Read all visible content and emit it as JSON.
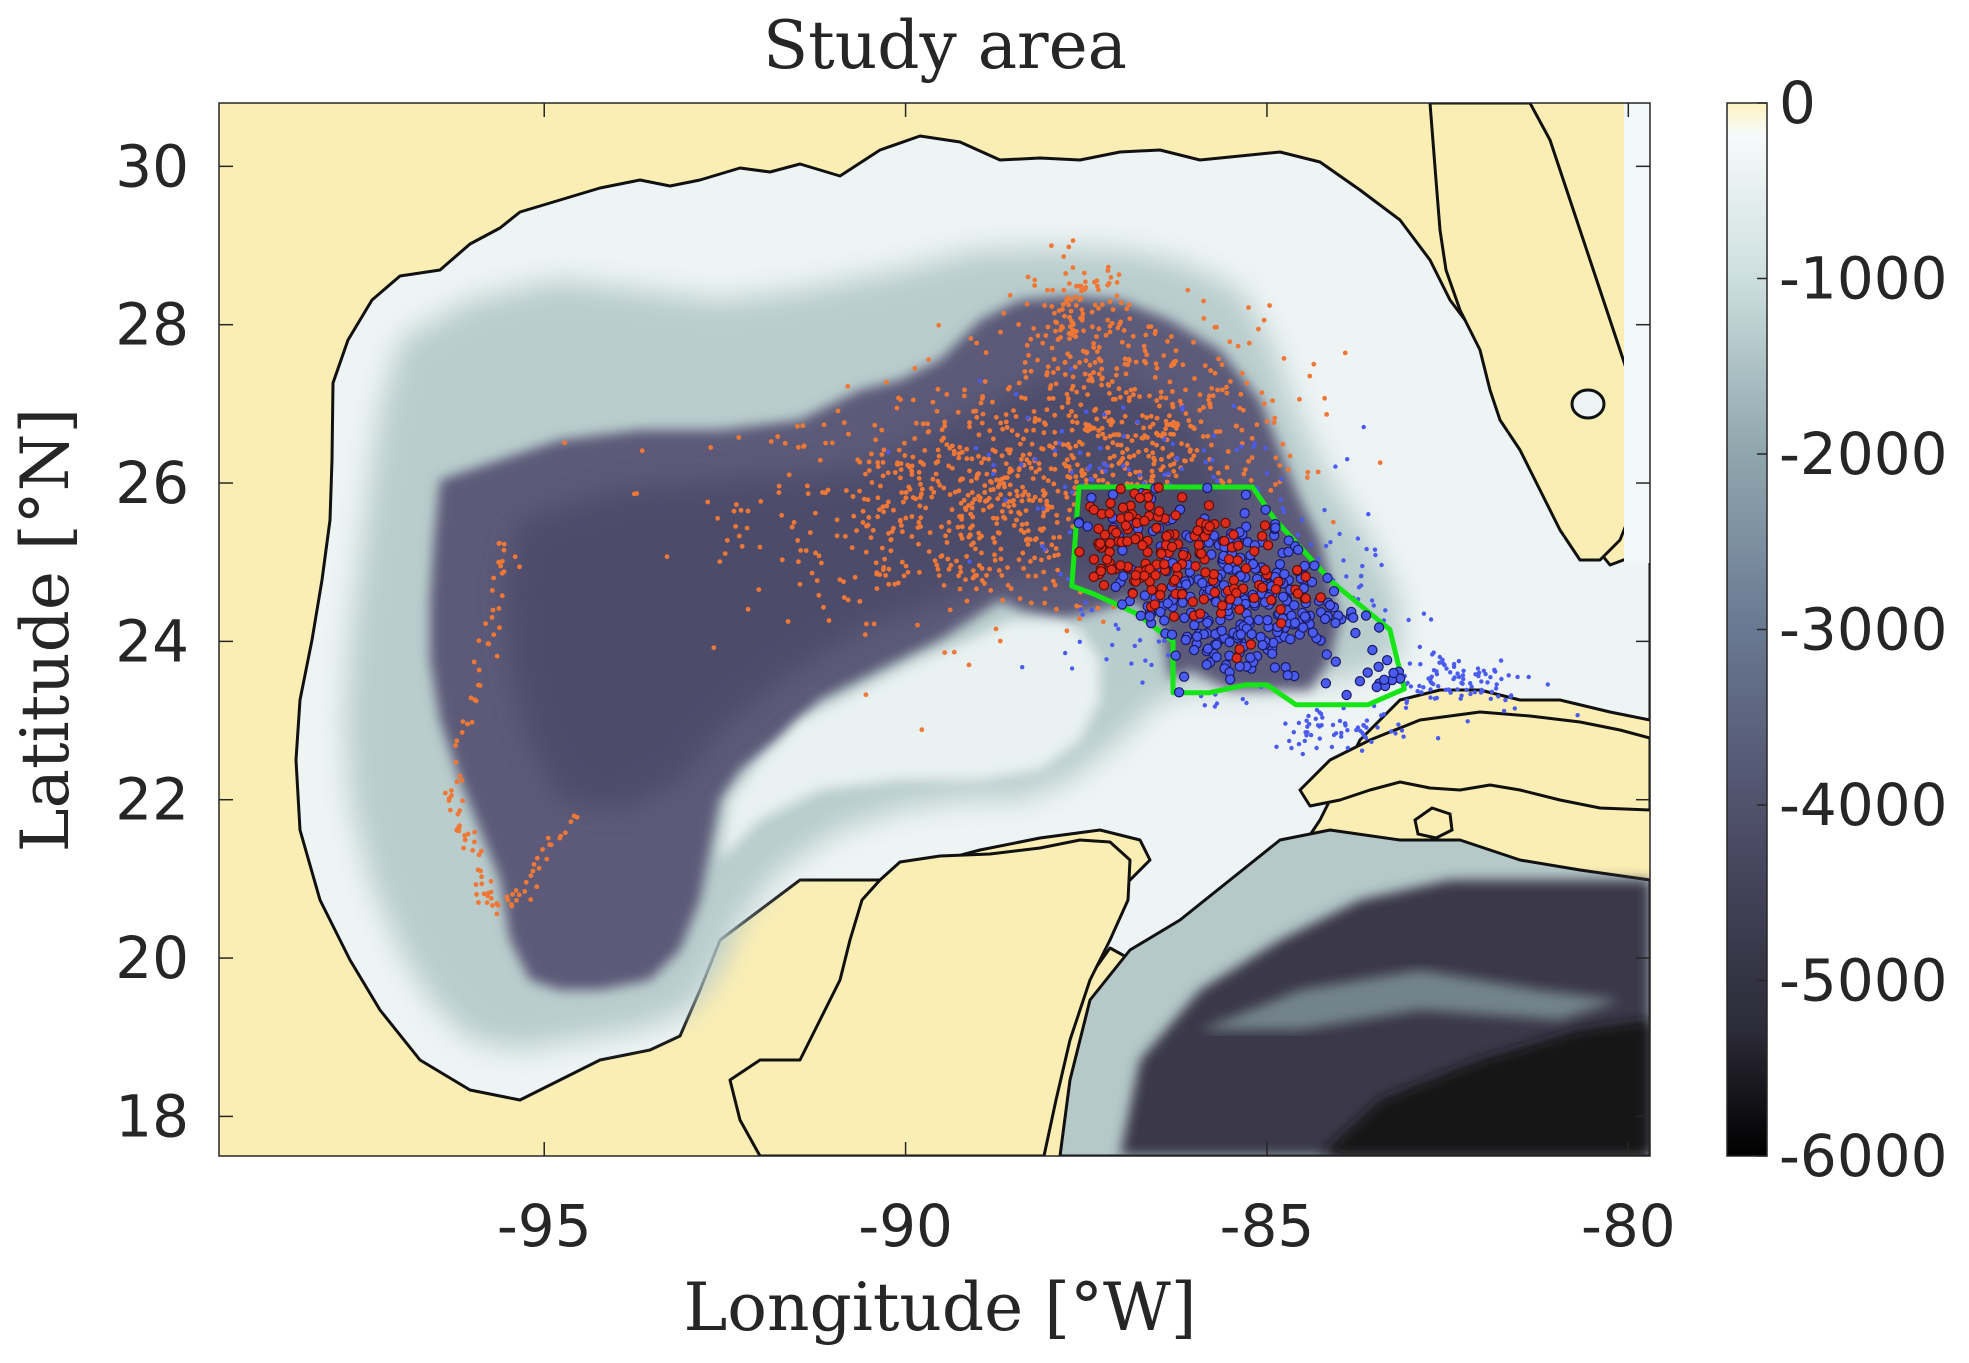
{
  "title": "Study area",
  "x_axis": {
    "label": "Longitude [°W]",
    "ticks": [
      {
        "value": -95,
        "label": "-95"
      },
      {
        "value": -90,
        "label": "-90"
      },
      {
        "value": -85,
        "label": "-85"
      },
      {
        "value": -80,
        "label": "-80"
      }
    ],
    "range": [
      -99.5,
      -79.7
    ]
  },
  "y_axis": {
    "label": "Latitude [°N]",
    "ticks": [
      {
        "value": 30,
        "label": "30"
      },
      {
        "value": 28,
        "label": "28"
      },
      {
        "value": 26,
        "label": "26"
      },
      {
        "value": 24,
        "label": "24"
      },
      {
        "value": 22,
        "label": "22"
      },
      {
        "value": 20,
        "label": "20"
      },
      {
        "value": 18,
        "label": "18"
      }
    ],
    "range": [
      17.5,
      30.8
    ]
  },
  "colorbar": {
    "ticks": [
      {
        "value": 0,
        "label": "0"
      },
      {
        "value": -1000,
        "label": "-1000"
      },
      {
        "value": -2000,
        "label": "-2000"
      },
      {
        "value": -3000,
        "label": "-3000"
      },
      {
        "value": -4000,
        "label": "-4000"
      },
      {
        "value": -5000,
        "label": "-5000"
      },
      {
        "value": -6000,
        "label": "-6000"
      }
    ],
    "range": [
      -6000,
      0
    ],
    "colors": [
      "#000000",
      "#3b3a4a",
      "#5d5c78",
      "#7f8ca0",
      "#a9c2c2",
      "#e2eeee",
      "#f3f7f7",
      "#fdf3bf"
    ]
  },
  "colors": {
    "land": "#fbeeb4",
    "shelf": "#eef4f4",
    "slope": "#b7cccc",
    "deep": "#5c5a78",
    "abyss": "#4a4866",
    "orange_points": "#f07836",
    "blue_points": "#4a5bf0",
    "red_points": "#e02a1a",
    "boundary": "#16e616"
  },
  "chart_data": {
    "type": "scatter",
    "title": "Study area",
    "xlabel": "Longitude [°W]",
    "ylabel": "Latitude [°N]",
    "xlim": [
      -99.5,
      -79.7
    ],
    "ylim": [
      17.5,
      30.8
    ],
    "study_polygon": {
      "lon": [
        -87.6,
        -85.2,
        -84.9,
        -84.1,
        -83.3,
        -83.1,
        -83.6,
        -84.6,
        -85.0,
        -85.3,
        -85.8,
        -86.3,
        -86.3,
        -86.8,
        -87.4,
        -87.7,
        -87.6
      ],
      "lat": [
        25.95,
        25.95,
        25.55,
        24.75,
        24.15,
        23.4,
        23.2,
        23.2,
        23.45,
        23.45,
        23.35,
        23.35,
        24.0,
        24.35,
        24.6,
        24.7,
        25.95
      ]
    },
    "series": [
      {
        "color": "orange",
        "clusters": [
          {
            "lon": -88.8,
            "lat": 25.7,
            "n": 700,
            "sd_lon": 1.7,
            "sd_lat": 0.7
          },
          {
            "lon": -86.8,
            "lat": 26.8,
            "n": 380,
            "sd_lon": 1.1,
            "sd_lat": 0.7
          },
          {
            "lon": -87.6,
            "lat": 28.1,
            "n": 120,
            "sd_lon": 0.35,
            "sd_lat": 0.4
          }
        ],
        "tracks": [
          {
            "lon": [
              -95.5,
              -95.6,
              -95.8,
              -96.0,
              -96.3,
              -96.2,
              -96.0,
              -95.8,
              -95.6,
              -95.3,
              -95.0,
              -94.6
            ],
            "lat": [
              25.3,
              24.8,
              24.0,
              23.2,
              22.2,
              21.8,
              21.3,
              20.9,
              20.6,
              20.8,
              21.3,
              21.8
            ]
          }
        ]
      },
      {
        "color": "blue",
        "clusters": [
          {
            "lon": -85.4,
            "lat": 24.5,
            "n": 380,
            "sd_lon": 0.9,
            "sd_lat": 0.55
          },
          {
            "lon": -82.4,
            "lat": 23.5,
            "n": 110,
            "sd_lon": 0.6,
            "sd_lat": 0.2
          },
          {
            "lon": -84.0,
            "lat": 22.9,
            "n": 60,
            "sd_lon": 0.5,
            "sd_lat": 0.15
          },
          {
            "lon": -87.0,
            "lat": 26.2,
            "n": 90,
            "sd_lon": 1.4,
            "sd_lat": 0.5
          }
        ]
      },
      {
        "color": "red",
        "clusters": [
          {
            "lon": -86.8,
            "lat": 25.2,
            "n": 120,
            "sd_lon": 0.5,
            "sd_lat": 0.4
          },
          {
            "lon": -85.5,
            "lat": 24.8,
            "n": 60,
            "sd_lon": 0.5,
            "sd_lat": 0.4
          }
        ]
      }
    ]
  }
}
